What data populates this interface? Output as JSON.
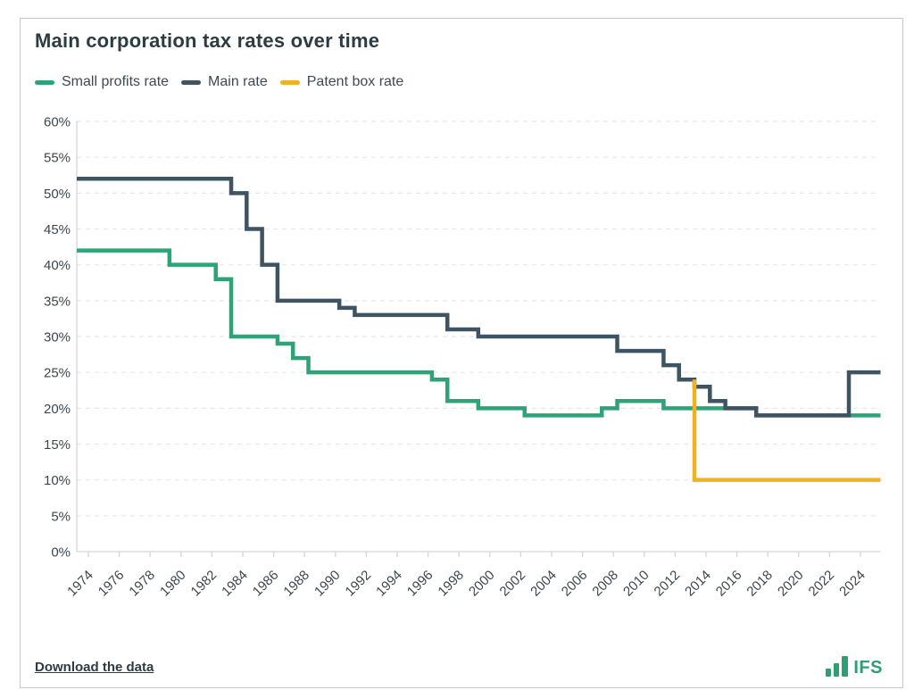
{
  "card": {
    "title": "Main corporation tax rates over time",
    "download_link": "Download the data",
    "logo_text": "IFS"
  },
  "legend": [
    {
      "label": "Small profits rate",
      "color": "#2da378"
    },
    {
      "label": "Main rate",
      "color": "#3e5463"
    },
    {
      "label": "Patent box rate",
      "color": "#efb322"
    }
  ],
  "chart_data": {
    "type": "line",
    "subtype": "step",
    "title": "Main corporation tax rates over time",
    "xlabel": "",
    "ylabel": "",
    "x_domain": [
      1973.25,
      2025.3
    ],
    "fiscal_year_offset": 0.25,
    "ylim": [
      0,
      60
    ],
    "grid": "horizontal-dashed",
    "legend_position": "top-left",
    "x_ticks": [
      1974,
      1976,
      1978,
      1980,
      1982,
      1984,
      1986,
      1988,
      1990,
      1992,
      1994,
      1996,
      1998,
      2000,
      2002,
      2004,
      2006,
      2008,
      2010,
      2012,
      2014,
      2016,
      2018,
      2020,
      2022,
      2024
    ],
    "x_tick_labels": [
      "1974",
      "1976",
      "1978",
      "1980",
      "1982",
      "1984",
      "1986",
      "1988",
      "1990",
      "1992",
      "1994",
      "1996",
      "1998",
      "2000",
      "2002",
      "2004",
      "2006",
      "2008",
      "2010",
      "2012",
      "2014",
      "2016",
      "2018",
      "2020",
      "2022",
      "2024"
    ],
    "y_ticks": [
      0,
      5,
      10,
      15,
      20,
      25,
      30,
      35,
      40,
      45,
      50,
      55,
      60
    ],
    "y_tick_labels": [
      "0%",
      "5%",
      "10%",
      "15%",
      "20%",
      "25%",
      "30%",
      "35%",
      "40%",
      "45%",
      "50%",
      "55%",
      "60%"
    ],
    "series": [
      {
        "name": "Small profits rate",
        "color": "#2da378",
        "segments": [
          [
            1973,
            42
          ],
          [
            1979,
            40
          ],
          [
            1982,
            38
          ],
          [
            1983,
            30
          ],
          [
            1986,
            29
          ],
          [
            1987,
            27
          ],
          [
            1988,
            25
          ],
          [
            1996,
            24
          ],
          [
            1997,
            21
          ],
          [
            1999,
            20
          ],
          [
            2002,
            19
          ],
          [
            2007,
            20
          ],
          [
            2008,
            21
          ],
          [
            2011,
            20
          ],
          [
            2017,
            19
          ]
        ]
      },
      {
        "name": "Main rate",
        "color": "#3e5463",
        "segments": [
          [
            1973,
            52
          ],
          [
            1983,
            50
          ],
          [
            1984,
            45
          ],
          [
            1985,
            40
          ],
          [
            1986,
            35
          ],
          [
            1990,
            34
          ],
          [
            1991,
            33
          ],
          [
            1997,
            31
          ],
          [
            1999,
            30
          ],
          [
            2008,
            28
          ],
          [
            2011,
            26
          ],
          [
            2012,
            24
          ],
          [
            2013,
            23
          ],
          [
            2014,
            21
          ],
          [
            2015,
            20
          ],
          [
            2017,
            19
          ],
          [
            2023,
            25
          ]
        ]
      },
      {
        "name": "Patent box rate",
        "color": "#efb322",
        "start_value": 24,
        "segments": [
          [
            2013,
            10
          ]
        ]
      }
    ]
  }
}
